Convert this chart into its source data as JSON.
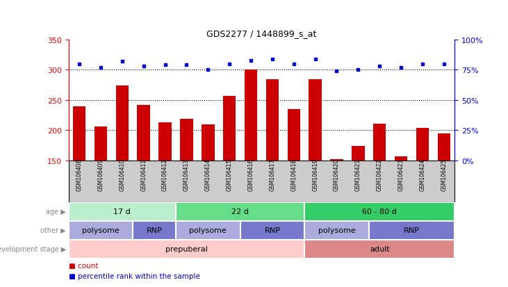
{
  "title": "GDS2277 / 1448899_s_at",
  "samples": [
    "GSM106408",
    "GSM106409",
    "GSM106410",
    "GSM106411",
    "GSM106412",
    "GSM106413",
    "GSM106414",
    "GSM106415",
    "GSM106416",
    "GSM106417",
    "GSM106418",
    "GSM106419",
    "GSM106420",
    "GSM106421",
    "GSM106422",
    "GSM106423",
    "GSM106424",
    "GSM106425"
  ],
  "counts": [
    239,
    206,
    274,
    242,
    213,
    219,
    210,
    257,
    301,
    284,
    235,
    284,
    152,
    174,
    211,
    157,
    204,
    195
  ],
  "percentiles": [
    80,
    77,
    82,
    78,
    79,
    79,
    75,
    80,
    83,
    84,
    80,
    84,
    74,
    75,
    78,
    77,
    80,
    80
  ],
  "ylim_left": [
    150,
    350
  ],
  "ylim_right": [
    0,
    100
  ],
  "yticks_left": [
    150,
    200,
    250,
    300,
    350
  ],
  "yticks_right": [
    0,
    25,
    50,
    75,
    100
  ],
  "bar_color": "#cc0000",
  "dot_color": "#0000cc",
  "tick_bg_color": "#cccccc",
  "age_groups": [
    {
      "label": "17 d",
      "start": 0,
      "end": 5,
      "color": "#bbeecc"
    },
    {
      "label": "22 d",
      "start": 5,
      "end": 11,
      "color": "#66dd88"
    },
    {
      "label": "60 - 80 d",
      "start": 11,
      "end": 18,
      "color": "#33cc66"
    }
  ],
  "other_groups": [
    {
      "label": "polysome",
      "start": 0,
      "end": 3,
      "color": "#aaaadd"
    },
    {
      "label": "RNP",
      "start": 3,
      "end": 5,
      "color": "#7777cc"
    },
    {
      "label": "polysome",
      "start": 5,
      "end": 8,
      "color": "#aaaadd"
    },
    {
      "label": "RNP",
      "start": 8,
      "end": 11,
      "color": "#7777cc"
    },
    {
      "label": "polysome",
      "start": 11,
      "end": 14,
      "color": "#aaaadd"
    },
    {
      "label": "RNP",
      "start": 14,
      "end": 18,
      "color": "#7777cc"
    }
  ],
  "dev_groups": [
    {
      "label": "prepuberal",
      "start": 0,
      "end": 11,
      "color": "#ffcccc"
    },
    {
      "label": "adult",
      "start": 11,
      "end": 18,
      "color": "#dd8888"
    }
  ],
  "row_labels": [
    "age",
    "other",
    "development stage"
  ],
  "legend_count_color": "#cc0000",
  "legend_dot_color": "#0000cc",
  "background_color": "#ffffff"
}
